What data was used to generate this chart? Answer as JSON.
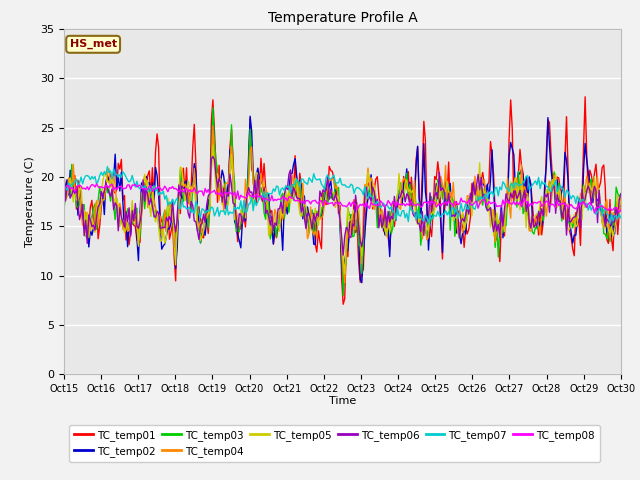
{
  "title": "Temperature Profile A",
  "xlabel": "Time",
  "ylabel": "Temperature (C)",
  "ylim": [
    0,
    35
  ],
  "yticks": [
    0,
    5,
    10,
    15,
    20,
    25,
    30,
    35
  ],
  "x_tick_labels": [
    "Oct 15",
    "Oct 16",
    "Oct 17",
    "Oct 18",
    "Oct 19",
    "Oct 20",
    "Oct 21",
    "Oct 22",
    "Oct 23",
    "Oct 24",
    "Oct 25",
    "Oct 26",
    "Oct 27",
    "Oct 28",
    "Oct 29",
    "Oct 30"
  ],
  "annotation_text": "HS_met",
  "annotation_color": "#8B0000",
  "annotation_bg": "#FFFFCC",
  "annotation_border": "#8B6914",
  "series_colors": {
    "TC_temp01": "#FF0000",
    "TC_temp02": "#0000CC",
    "TC_temp03": "#00CC00",
    "TC_temp04": "#FF8800",
    "TC_temp05": "#CCCC00",
    "TC_temp06": "#9900BB",
    "TC_temp07": "#00CCCC",
    "TC_temp08": "#FF00FF"
  },
  "bg_color": "#E8E8E8",
  "fig_bg_color": "#F2F2F2",
  "grid_color": "#FFFFFF",
  "n_days": 15,
  "base_temp": 18.0,
  "samples_per_day": 24
}
